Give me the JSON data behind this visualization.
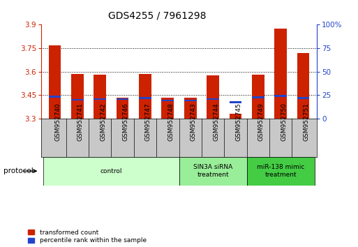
{
  "title": "GDS4255 / 7961298",
  "samples": [
    "GSM952740",
    "GSM952741",
    "GSM952742",
    "GSM952746",
    "GSM952747",
    "GSM952748",
    "GSM952743",
    "GSM952744",
    "GSM952745",
    "GSM952749",
    "GSM952750",
    "GSM952751"
  ],
  "red_values": [
    3.77,
    3.585,
    3.58,
    3.435,
    3.585,
    3.435,
    3.435,
    3.575,
    3.33,
    3.58,
    3.875,
    3.72
  ],
  "blue_values": [
    3.44,
    3.42,
    3.425,
    3.425,
    3.43,
    3.415,
    3.415,
    3.425,
    3.405,
    3.435,
    3.445,
    3.43
  ],
  "ymin": 3.3,
  "ymax": 3.9,
  "yticks": [
    3.3,
    3.45,
    3.6,
    3.75,
    3.9
  ],
  "right_yticks": [
    0,
    25,
    50,
    75,
    100
  ],
  "groups": [
    {
      "label": "control",
      "start": 0,
      "end": 6,
      "color": "#ccffcc"
    },
    {
      "label": "SIN3A siRNA\ntreatment",
      "start": 6,
      "end": 9,
      "color": "#99ee99"
    },
    {
      "label": "miR-138 mimic\ntreatment",
      "start": 9,
      "end": 12,
      "color": "#44cc44"
    }
  ],
  "bar_color": "#cc2200",
  "blue_color": "#2244cc",
  "bar_width": 0.55,
  "blue_bar_height": 0.012,
  "tick_label_fontsize": 6.5,
  "title_fontsize": 10,
  "left_axis_color": "#cc2200",
  "right_axis_color": "#2244cc",
  "grid_color": "#000000",
  "bg_color": "#ffffff",
  "sample_label_bg": "#c8c8c8",
  "protocol_label": "protocol",
  "legend1": "transformed count",
  "legend2": "percentile rank within the sample"
}
